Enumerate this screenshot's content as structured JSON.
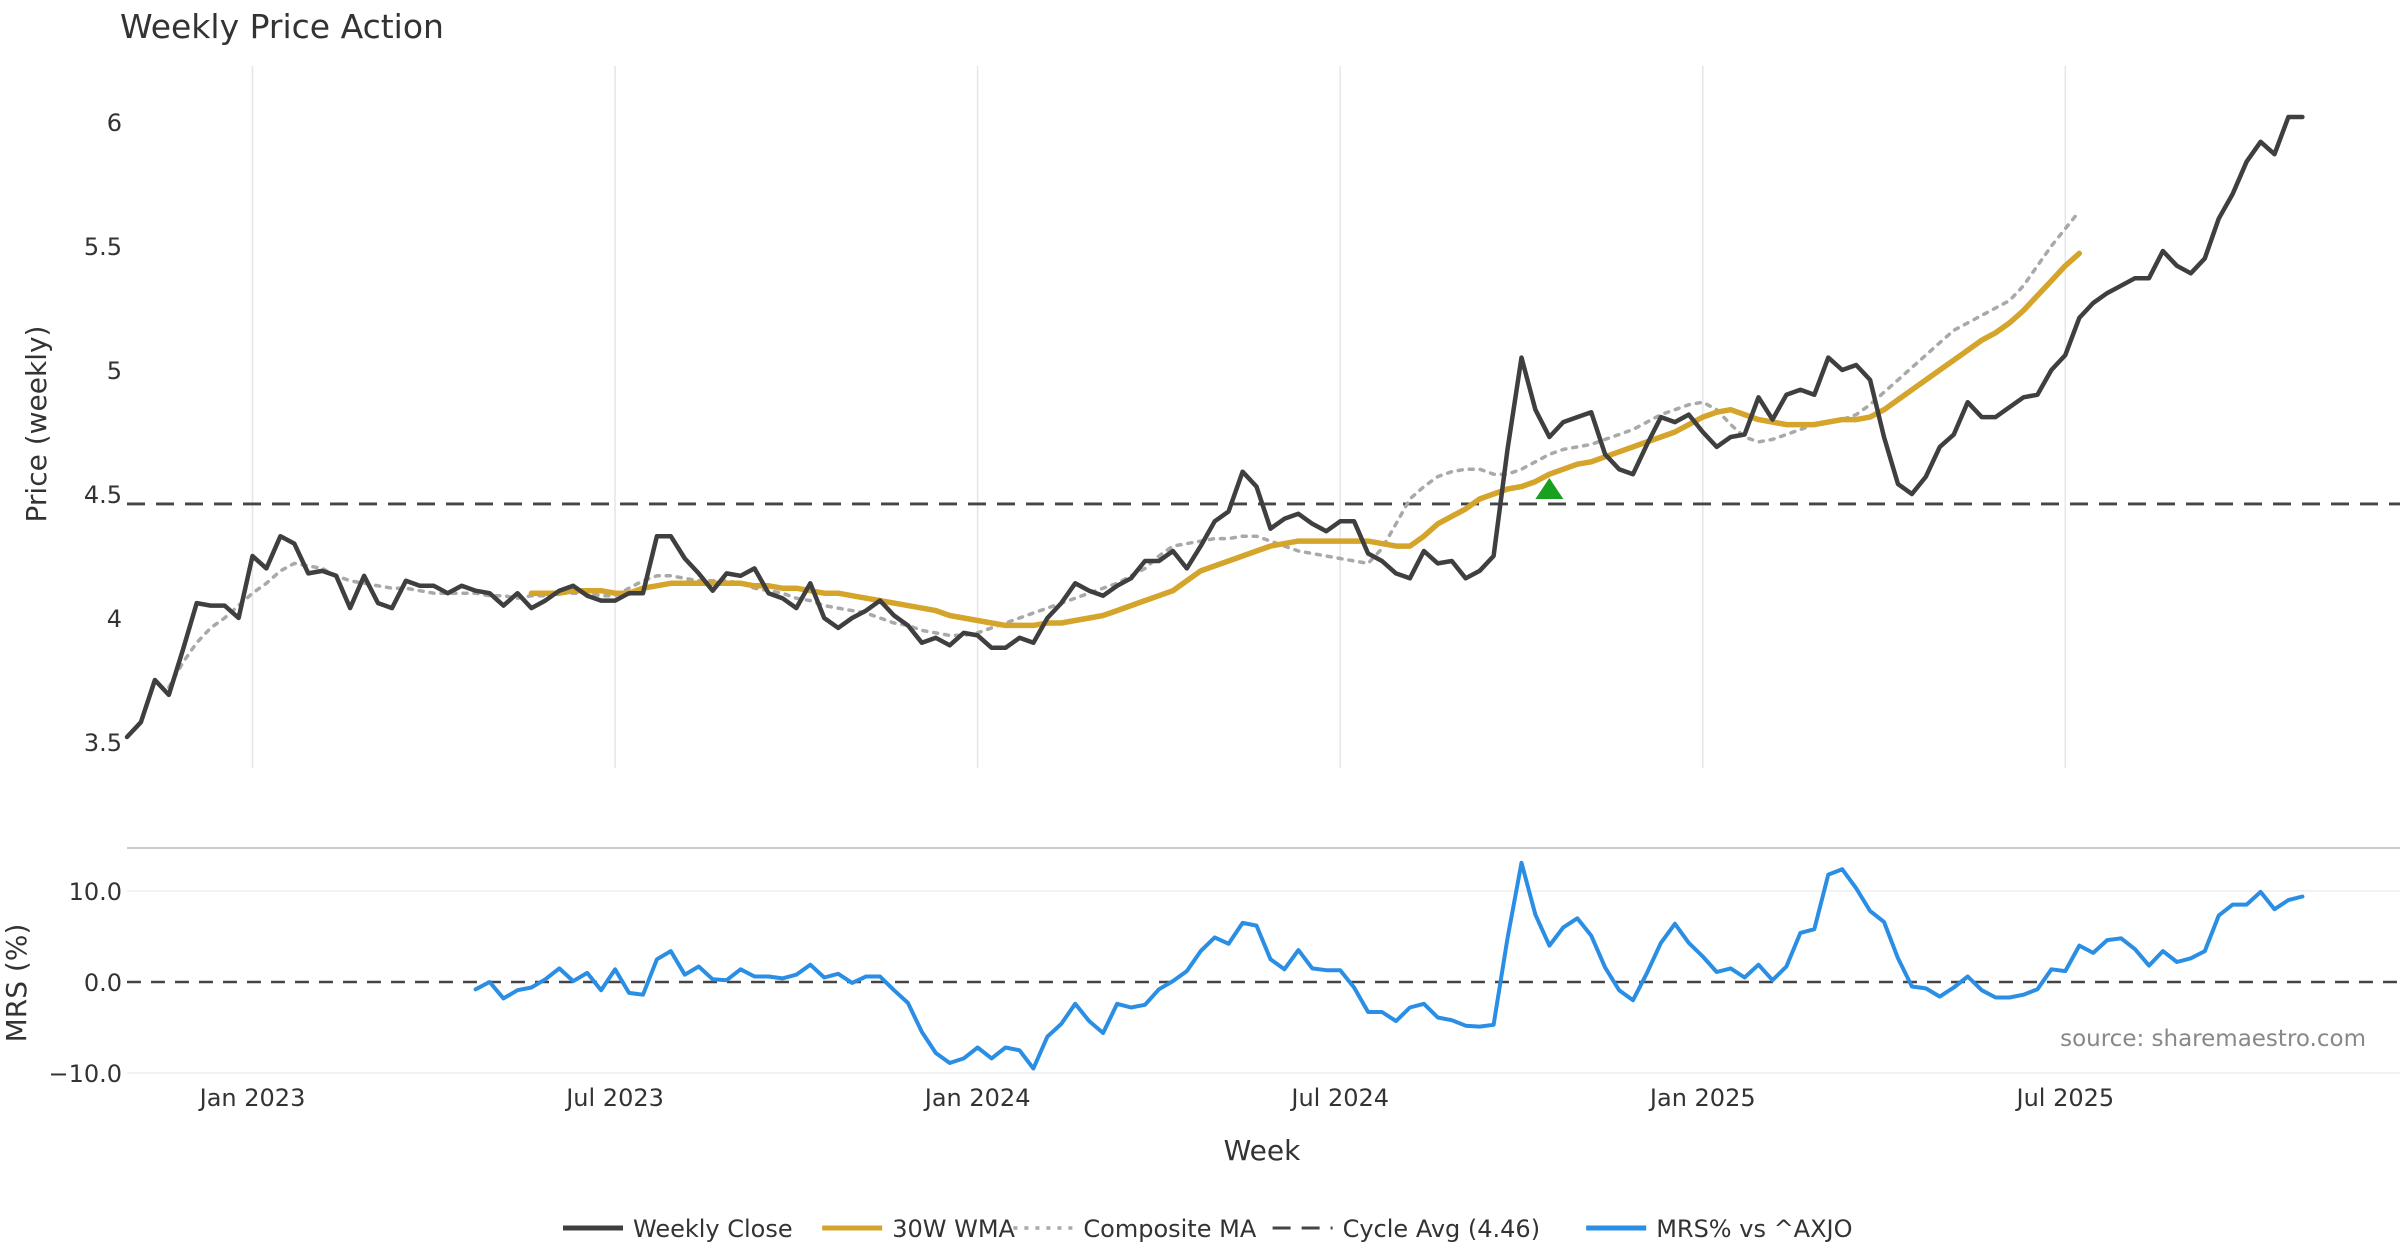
{
  "colors": {
    "close": "#3f3f3f",
    "wma": "#d4a52a",
    "composite": "#a9a9a9",
    "cycle": "#454545",
    "mrs": "#2a8ee5",
    "signal": "#18a01e",
    "grid": "#e6e6e6",
    "text": "#333333",
    "source": "#888888"
  },
  "chart_data": [
    {
      "type": "line",
      "title": "Weekly Price Action",
      "xlabel": "",
      "ylabel": "Price (weekly)",
      "ylim": [
        3.5,
        6.1
      ],
      "yticks": [
        {
          "value": 3.5,
          "label": "3.5"
        },
        {
          "value": 4,
          "label": "4"
        },
        {
          "value": 4.5,
          "label": "4.5"
        },
        {
          "value": 5,
          "label": "5"
        },
        {
          "value": 5.5,
          "label": "5.5"
        },
        {
          "value": 6,
          "label": "6"
        }
      ],
      "grid": "vertical",
      "x_unit": "week index (0 = first plotted week, about 2022-10-14)",
      "xlim": [
        0,
        163
      ],
      "x_gridlines": [
        9,
        35,
        61,
        87,
        113,
        139
      ],
      "series": [
        {
          "name": "Weekly Close",
          "style": "solid",
          "start": 0,
          "values": [
            3.52,
            3.58,
            3.75,
            3.69,
            3.87,
            4.06,
            4.05,
            4.05,
            4.0,
            4.25,
            4.2,
            4.33,
            4.3,
            4.18,
            4.19,
            4.17,
            4.04,
            4.17,
            4.06,
            4.04,
            4.15,
            4.13,
            4.13,
            4.1,
            4.13,
            4.11,
            4.1,
            4.05,
            4.1,
            4.04,
            4.07,
            4.11,
            4.13,
            4.09,
            4.07,
            4.07,
            4.1,
            4.1,
            4.33,
            4.33,
            4.24,
            4.18,
            4.11,
            4.18,
            4.17,
            4.2,
            4.1,
            4.08,
            4.04,
            4.14,
            4.0,
            3.96,
            4.0,
            4.03,
            4.07,
            4.01,
            3.97,
            3.9,
            3.92,
            3.89,
            3.94,
            3.93,
            3.88,
            3.88,
            3.92,
            3.9,
            4.0,
            4.06,
            4.14,
            4.11,
            4.09,
            4.13,
            4.16,
            4.23,
            4.23,
            4.27,
            4.2,
            4.29,
            4.39,
            4.43,
            4.59,
            4.53,
            4.36,
            4.4,
            4.42,
            4.38,
            4.35,
            4.39,
            4.39,
            4.26,
            4.23,
            4.18,
            4.16,
            4.27,
            4.22,
            4.23,
            4.16,
            4.19,
            4.25,
            4.68,
            5.05,
            4.84,
            4.73,
            4.79,
            4.81,
            4.83,
            4.66,
            4.6,
            4.58,
            4.7,
            4.81,
            4.79,
            4.82,
            4.75,
            4.69,
            4.73,
            4.74,
            4.89,
            4.8,
            4.9,
            4.92,
            4.9,
            5.05,
            5.0,
            5.02,
            4.96,
            4.73,
            4.54,
            4.5,
            4.57,
            4.69,
            4.74,
            4.87,
            4.81,
            4.81,
            4.85,
            4.89,
            4.9,
            5.0,
            5.06,
            5.21,
            5.27,
            5.31,
            5.34,
            5.37,
            5.37,
            5.48,
            5.42,
            5.39,
            5.45,
            5.61,
            5.71,
            5.84,
            5.92,
            5.87,
            6.02,
            6.02
          ]
        },
        {
          "name": "30W WMA",
          "style": "solid",
          "start": 29,
          "values": [
            4.1,
            4.1,
            4.1,
            4.11,
            4.11,
            4.11,
            4.1,
            4.1,
            4.12,
            4.13,
            4.14,
            4.14,
            4.14,
            4.14,
            4.14,
            4.14,
            4.13,
            4.13,
            4.12,
            4.12,
            4.11,
            4.1,
            4.1,
            4.09,
            4.08,
            4.07,
            4.06,
            4.05,
            4.04,
            4.03,
            4.01,
            4.0,
            3.99,
            3.98,
            3.97,
            3.97,
            3.97,
            3.98,
            3.98,
            3.99,
            4.0,
            4.01,
            4.03,
            4.05,
            4.07,
            4.09,
            4.11,
            4.15,
            4.19,
            4.21,
            4.23,
            4.25,
            4.27,
            4.29,
            4.3,
            4.31,
            4.31,
            4.31,
            4.31,
            4.31,
            4.31,
            4.3,
            4.29,
            4.29,
            4.33,
            4.38,
            4.41,
            4.44,
            4.48,
            4.5,
            4.52,
            4.53,
            4.55,
            4.58,
            4.6,
            4.62,
            4.63,
            4.65,
            4.67,
            4.69,
            4.71,
            4.73,
            4.75,
            4.78,
            4.81,
            4.83,
            4.84,
            4.82,
            4.8,
            4.79,
            4.78,
            4.78,
            4.78,
            4.79,
            4.8,
            4.8,
            4.81,
            4.84,
            4.88,
            4.92,
            4.96,
            5.0,
            5.04,
            5.08,
            5.12,
            5.15,
            5.19,
            5.24,
            5.3,
            5.36,
            5.42,
            5.47
          ]
        },
        {
          "name": "Composite MA",
          "style": "dotted",
          "start": 3,
          "values": [
            3.72,
            3.82,
            3.9,
            3.96,
            4.0,
            4.05,
            4.1,
            4.14,
            4.19,
            4.22,
            4.21,
            4.2,
            4.17,
            4.15,
            4.14,
            4.13,
            4.12,
            4.12,
            4.11,
            4.1,
            4.1,
            4.1,
            4.1,
            4.09,
            4.09,
            4.08,
            4.09,
            4.09,
            4.1,
            4.1,
            4.1,
            4.09,
            4.09,
            4.12,
            4.15,
            4.17,
            4.17,
            4.16,
            4.15,
            4.15,
            4.15,
            4.14,
            4.12,
            4.11,
            4.1,
            4.08,
            4.07,
            4.05,
            4.04,
            4.03,
            4.02,
            4.0,
            3.98,
            3.97,
            3.95,
            3.94,
            3.93,
            3.93,
            3.94,
            3.96,
            3.98,
            4.0,
            4.02,
            4.04,
            4.06,
            4.08,
            4.1,
            4.12,
            4.14,
            4.17,
            4.2,
            4.25,
            4.29,
            4.3,
            4.31,
            4.32,
            4.32,
            4.33,
            4.33,
            4.31,
            4.29,
            4.27,
            4.26,
            4.25,
            4.24,
            4.23,
            4.22,
            4.28,
            4.38,
            4.48,
            4.53,
            4.57,
            4.59,
            4.6,
            4.6,
            4.58,
            4.58,
            4.6,
            4.63,
            4.66,
            4.68,
            4.69,
            4.7,
            4.72,
            4.74,
            4.76,
            4.79,
            4.82,
            4.84,
            4.86,
            4.87,
            4.84,
            4.78,
            4.73,
            4.71,
            4.72,
            4.74,
            4.76,
            4.78,
            4.79,
            4.8,
            4.82,
            4.86,
            4.91,
            4.96,
            5.01,
            5.06,
            5.11,
            5.16,
            5.19,
            5.22,
            5.25,
            5.28,
            5.34,
            5.42,
            5.5,
            5.57,
            5.64
          ]
        },
        {
          "name": "Cycle Avg (4.46)",
          "style": "dashed",
          "constant": 4.46
        }
      ],
      "annotations": [
        {
          "type": "marker",
          "shape": "triangle-up",
          "x": 102,
          "y": 4.52
        }
      ]
    },
    {
      "type": "line",
      "title": "",
      "xlabel": "Week",
      "ylabel": "MRS (%)",
      "ylim": [
        -10,
        10
      ],
      "yticks": [
        {
          "value": 10,
          "label": "10.0"
        },
        {
          "value": 0,
          "label": "0.0"
        },
        {
          "value": -10,
          "label": "−10.0"
        }
      ],
      "zero_line": "dashed",
      "xticks": [
        {
          "value": 9,
          "label": "Jan 2023"
        },
        {
          "value": 35,
          "label": "Jul 2023"
        },
        {
          "value": 61,
          "label": "Jan 2024"
        },
        {
          "value": 87,
          "label": "Jul 2024"
        },
        {
          "value": 113,
          "label": "Jan 2025"
        },
        {
          "value": 139,
          "label": "Jul 2025"
        }
      ],
      "series": [
        {
          "name": "MRS% vs ^AXJO",
          "style": "solid",
          "start": 25,
          "values": [
            -0.8,
            0.0,
            -1.8,
            -0.9,
            -0.6,
            0.3,
            1.5,
            0.1,
            1.0,
            -0.9,
            1.4,
            -1.2,
            -1.4,
            2.5,
            3.4,
            0.8,
            1.7,
            0.3,
            0.2,
            1.4,
            0.6,
            0.6,
            0.4,
            0.8,
            1.9,
            0.5,
            0.9,
            -0.1,
            0.6,
            0.6,
            -0.9,
            -2.3,
            -5.5,
            -7.8,
            -8.9,
            -8.4,
            -7.2,
            -8.4,
            -7.2,
            -7.5,
            -9.5,
            -6.0,
            -4.6,
            -2.4,
            -4.3,
            -5.6,
            -2.4,
            -2.8,
            -2.5,
            -0.8,
            0.1,
            1.2,
            3.4,
            4.9,
            4.2,
            6.5,
            6.2,
            2.5,
            1.4,
            3.5,
            1.5,
            1.3,
            1.3,
            -0.6,
            -3.3,
            -3.3,
            -4.3,
            -2.8,
            -2.4,
            -3.9,
            -4.2,
            -4.8,
            -4.9,
            -4.7,
            4.8,
            13.1,
            7.4,
            4.0,
            6.0,
            7.0,
            5.1,
            1.6,
            -0.9,
            -2.0,
            1.0,
            4.3,
            6.4,
            4.3,
            2.8,
            1.1,
            1.5,
            0.5,
            1.9,
            0.2,
            1.7,
            5.4,
            5.8,
            11.8,
            12.4,
            10.3,
            7.8,
            6.6,
            2.6,
            -0.5,
            -0.7,
            -1.6,
            -0.6,
            0.6,
            -0.9,
            -1.7,
            -1.7,
            -1.4,
            -0.8,
            1.4,
            1.2,
            4.0,
            3.2,
            4.6,
            4.8,
            3.6,
            1.8,
            3.4,
            2.2,
            2.6,
            3.4,
            7.3,
            8.5,
            8.5,
            9.9,
            8.0,
            9.0,
            9.4
          ]
        }
      ]
    }
  ],
  "source": "source: sharemaestro.com",
  "legend": [
    {
      "key": "close",
      "style": "solid",
      "label": "Weekly Close"
    },
    {
      "key": "wma",
      "style": "solid",
      "label": "30W WMA"
    },
    {
      "key": "composite",
      "style": "dotted",
      "label": "Composite MA"
    },
    {
      "key": "cycle",
      "style": "dashed",
      "label": "Cycle Avg (4.46)"
    },
    {
      "key": "mrs",
      "style": "solid",
      "label": "MRS% vs ^AXJO"
    }
  ]
}
